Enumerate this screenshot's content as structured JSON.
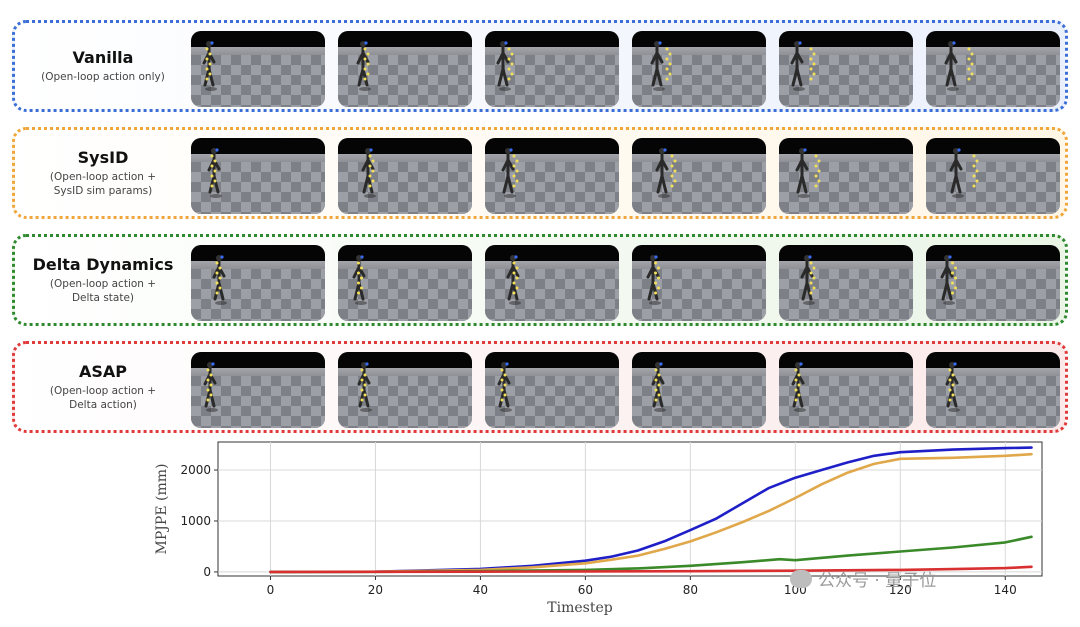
{
  "rows": [
    {
      "title": "Vanilla",
      "subtitle": "(Open-loop action only)",
      "border_color": "#3b6fd6",
      "bg_color": "#eaf0fb"
    },
    {
      "title": "SysID",
      "subtitle": "(Open-loop action +\nSysID sim params)",
      "border_color": "#f0a63a",
      "bg_color": "#fff6e6"
    },
    {
      "title": "Delta Dynamics",
      "subtitle": "(Open-loop action +\nDelta state)",
      "border_color": "#2f8a2f",
      "bg_color": "#eaf5e6"
    },
    {
      "title": "ASAP",
      "subtitle": "(Open-loop action +\nDelta action)",
      "border_color": "#e03a3a",
      "bg_color": "#fbe9e9"
    }
  ],
  "chart_data": {
    "type": "line",
    "title": "",
    "xlabel": "Timestep",
    "ylabel": "MPJPE (mm)",
    "xlim": [
      -10,
      147
    ],
    "ylim": [
      -80,
      2550
    ],
    "xticks": [
      0,
      20,
      40,
      60,
      80,
      100,
      120,
      140
    ],
    "yticks": [
      0,
      1000,
      2000
    ],
    "grid": true,
    "series": [
      {
        "name": "Vanilla",
        "color": "#1f1fc8",
        "x": [
          0,
          20,
          40,
          50,
          60,
          65,
          70,
          75,
          80,
          85,
          90,
          95,
          100,
          105,
          110,
          115,
          120,
          130,
          140,
          145
        ],
        "y": [
          0,
          5,
          60,
          120,
          220,
          300,
          420,
          600,
          820,
          1050,
          1350,
          1650,
          1850,
          2000,
          2150,
          2280,
          2350,
          2400,
          2430,
          2440
        ]
      },
      {
        "name": "SysID",
        "color": "#e0a84a",
        "x": [
          0,
          20,
          40,
          50,
          60,
          65,
          70,
          75,
          80,
          85,
          90,
          95,
          100,
          105,
          110,
          115,
          120,
          130,
          140,
          145
        ],
        "y": [
          0,
          5,
          40,
          90,
          170,
          240,
          320,
          450,
          600,
          780,
          980,
          1200,
          1450,
          1720,
          1950,
          2120,
          2220,
          2240,
          2280,
          2310
        ]
      },
      {
        "name": "Delta Dynamics",
        "color": "#3a8a2a",
        "x": [
          0,
          20,
          40,
          60,
          70,
          80,
          90,
          97,
          100,
          110,
          120,
          130,
          140,
          145
        ],
        "y": [
          0,
          3,
          15,
          40,
          70,
          120,
          190,
          250,
          230,
          320,
          400,
          480,
          580,
          690
        ]
      },
      {
        "name": "ASAP",
        "color": "#d83030",
        "x": [
          0,
          20,
          40,
          60,
          80,
          100,
          120,
          130,
          140,
          145
        ],
        "y": [
          0,
          2,
          5,
          10,
          15,
          25,
          40,
          55,
          75,
          100
        ]
      }
    ]
  },
  "watermark": {
    "text": "公众号 · 量子位"
  }
}
